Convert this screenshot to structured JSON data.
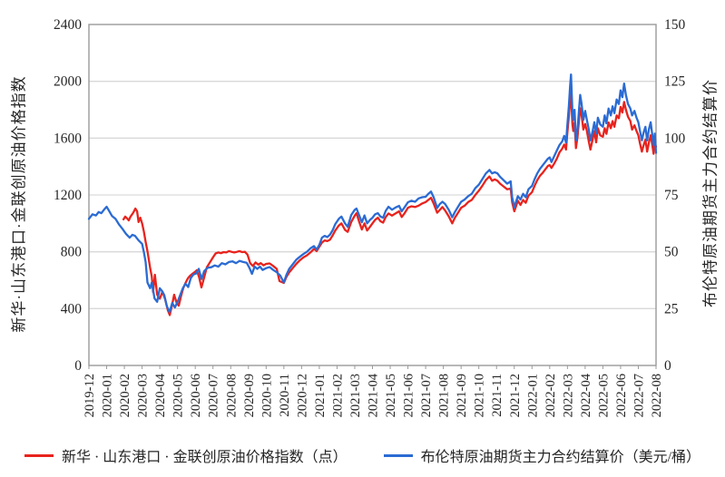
{
  "chart_data": {
    "type": "line",
    "title": "",
    "grid": "horizontal",
    "legend_position": "bottom",
    "x_axis": {
      "unit": "month_index_from_2019-12",
      "labels": [
        "2019-12",
        "2020-01",
        "2020-02",
        "2020-03",
        "2020-04",
        "2020-05",
        "2020-06",
        "2020-07",
        "2020-08",
        "2020-09",
        "2020-10",
        "2020-11",
        "2020-12",
        "2021-01",
        "2021-02",
        "2021-03",
        "2021-04",
        "2021-05",
        "2021-06",
        "2021-07",
        "2021-08",
        "2021-09",
        "2021-10",
        "2021-11",
        "2021-12",
        "2022-01",
        "2022-02",
        "2022-03",
        "2022-04",
        "2022-05",
        "2022-06",
        "2022-07",
        "2022-08"
      ]
    },
    "left_axis": {
      "title": "新华·山东港口·金联创原油价格指数",
      "min": 0,
      "max": 2400,
      "ticks": [
        0,
        400,
        800,
        1200,
        1600,
        2000,
        2400
      ]
    },
    "right_axis": {
      "title": "布伦特原油期货主力合约结算价",
      "min": 0,
      "max": 150,
      "ticks": [
        0,
        25,
        50,
        75,
        100,
        125,
        150
      ]
    },
    "series": [
      {
        "name": "新华 · 山东港口 · 金联创原油价格指数（点）",
        "axis": "left",
        "color": "#e8231d",
        "x": [
          1.95,
          2.05,
          2.15,
          2.25,
          2.35,
          2.5,
          2.62,
          2.72,
          2.8,
          2.9,
          3.0,
          3.1,
          3.2,
          3.3,
          3.45,
          3.55,
          3.62,
          3.72,
          3.85,
          4.0,
          4.15,
          4.3,
          4.45,
          4.56,
          4.7,
          4.81,
          4.95,
          5.07,
          5.2,
          5.32,
          5.45,
          5.58,
          5.7,
          5.84,
          6.0,
          6.09,
          6.22,
          6.35,
          6.5,
          6.65,
          6.8,
          7.0,
          7.15,
          7.3,
          7.45,
          7.6,
          7.75,
          7.9,
          8.05,
          8.2,
          8.35,
          8.5,
          8.65,
          8.8,
          8.95,
          9.1,
          9.25,
          9.4,
          9.55,
          9.7,
          9.85,
          10.0,
          10.2,
          10.4,
          10.6,
          10.75,
          11.0,
          11.15,
          11.3,
          11.5,
          11.7,
          11.9,
          12.1,
          12.3,
          12.5,
          12.7,
          12.85,
          13.0,
          13.15,
          13.3,
          13.45,
          13.6,
          13.75,
          13.9,
          14.1,
          14.25,
          14.45,
          14.6,
          14.8,
          15.0,
          15.1,
          15.25,
          15.4,
          15.55,
          15.7,
          15.85,
          16.0,
          16.15,
          16.3,
          16.45,
          16.6,
          16.75,
          16.9,
          17.1,
          17.3,
          17.5,
          17.65,
          17.8,
          18.0,
          18.2,
          18.4,
          18.6,
          18.8,
          19.0,
          19.15,
          19.3,
          19.45,
          19.65,
          19.8,
          19.95,
          20.1,
          20.3,
          20.5,
          20.65,
          20.8,
          21.0,
          21.2,
          21.4,
          21.6,
          21.8,
          22.0,
          22.2,
          22.4,
          22.6,
          22.75,
          22.9,
          23.05,
          23.2,
          23.4,
          23.6,
          23.8,
          23.88,
          24.0,
          24.1,
          24.2,
          24.35,
          24.5,
          24.65,
          24.8,
          25.0,
          25.15,
          25.3,
          25.45,
          25.6,
          25.75,
          25.9,
          26.0,
          26.1,
          26.25,
          26.4,
          26.55,
          26.7,
          26.82,
          26.92,
          27.0,
          27.08,
          27.15,
          27.2,
          27.28,
          27.33,
          27.4,
          27.48,
          27.57,
          27.65,
          27.72,
          27.8,
          27.9,
          28.0,
          28.1,
          28.2,
          28.3,
          28.42,
          28.52,
          28.62,
          28.72,
          28.85,
          29.0,
          29.1,
          29.2,
          29.32,
          29.45,
          29.55,
          29.65,
          29.78,
          29.9,
          30.0,
          30.1,
          30.2,
          30.3,
          30.42,
          30.55,
          30.65,
          30.78,
          30.9,
          31.0,
          31.1,
          31.2,
          31.3,
          31.4,
          31.5,
          31.6,
          31.7,
          31.78,
          31.86,
          31.93,
          32.0
        ],
        "values": [
          1028,
          1048,
          1035,
          1021,
          1048,
          1075,
          1104,
          1085,
          1010,
          1040,
          1000,
          944,
          870,
          804,
          689,
          625,
          517,
          638,
          498,
          470,
          520,
          466,
          390,
          355,
          430,
          498,
          440,
          421,
          490,
          543,
          580,
          613,
          630,
          645,
          660,
          670,
          620,
          549,
          620,
          690,
          720,
          760,
          788,
          795,
          790,
          798,
          795,
          805,
          800,
          795,
          800,
          805,
          798,
          800,
          780,
          720,
          700,
          725,
          710,
          720,
          705,
          715,
          718,
          700,
          680,
          594,
          581,
          625,
          655,
          685,
          715,
          740,
          760,
          775,
          795,
          820,
          805,
          835,
          865,
          880,
          875,
          885,
          915,
          950,
          985,
          1000,
          955,
          940,
          1010,
          1055,
          1072,
          1010,
          957,
          1000,
          950,
          975,
          1000,
          1025,
          1040,
          1015,
          1005,
          1045,
          1070,
          1055,
          1070,
          1085,
          1045,
          1070,
          1110,
          1120,
          1115,
          1125,
          1140,
          1150,
          1165,
          1180,
          1140,
          1075,
          1095,
          1115,
          1090,
          1050,
          1000,
          1040,
          1070,
          1110,
          1125,
          1150,
          1165,
          1200,
          1230,
          1265,
          1305,
          1330,
          1300,
          1310,
          1300,
          1280,
          1260,
          1240,
          1245,
          1150,
          1085,
          1120,
          1160,
          1130,
          1165,
          1145,
          1195,
          1220,
          1265,
          1305,
          1335,
          1355,
          1380,
          1405,
          1410,
          1390,
          1420,
          1455,
          1500,
          1525,
          1555,
          1520,
          1640,
          1750,
          1860,
          1920,
          1700,
          1650,
          1710,
          1530,
          1610,
          1720,
          1810,
          1760,
          1660,
          1700,
          1650,
          1580,
          1520,
          1590,
          1650,
          1570,
          1670,
          1620,
          1610,
          1670,
          1630,
          1710,
          1670,
          1720,
          1680,
          1760,
          1740,
          1820,
          1780,
          1855,
          1800,
          1750,
          1720,
          1660,
          1690,
          1650,
          1620,
          1560,
          1505,
          1550,
          1590,
          1505,
          1570,
          1620,
          1560,
          1490,
          1560,
          1540
        ]
      },
      {
        "name": "布伦特原油期货主力合约结算价（美元/桶）",
        "axis": "right",
        "color": "#2b6bd3",
        "x": [
          0,
          0.2,
          0.4,
          0.55,
          0.7,
          0.85,
          1.0,
          1.1,
          1.3,
          1.5,
          1.7,
          1.9,
          2.1,
          2.3,
          2.45,
          2.6,
          2.8,
          3.0,
          3.1,
          3.2,
          3.3,
          3.45,
          3.55,
          3.7,
          3.85,
          4.0,
          4.1,
          4.25,
          4.4,
          4.55,
          4.7,
          4.85,
          5.0,
          5.15,
          5.3,
          5.45,
          5.6,
          5.75,
          5.9,
          6.05,
          6.2,
          6.35,
          6.5,
          6.7,
          6.9,
          7.1,
          7.3,
          7.5,
          7.7,
          7.9,
          8.1,
          8.3,
          8.5,
          8.7,
          8.9,
          9.05,
          9.2,
          9.35,
          9.5,
          9.65,
          9.8,
          10.0,
          10.2,
          10.4,
          10.6,
          10.8,
          11.0,
          11.15,
          11.3,
          11.5,
          11.7,
          11.9,
          12.1,
          12.3,
          12.5,
          12.7,
          12.85,
          13.0,
          13.15,
          13.3,
          13.45,
          13.6,
          13.75,
          13.9,
          14.1,
          14.25,
          14.45,
          14.6,
          14.8,
          15.0,
          15.1,
          15.25,
          15.4,
          15.55,
          15.7,
          15.85,
          16.0,
          16.15,
          16.3,
          16.45,
          16.6,
          16.75,
          16.9,
          17.1,
          17.3,
          17.5,
          17.65,
          17.8,
          18.0,
          18.2,
          18.4,
          18.6,
          18.8,
          19.0,
          19.15,
          19.3,
          19.45,
          19.65,
          19.8,
          19.95,
          20.1,
          20.3,
          20.5,
          20.65,
          20.8,
          21.0,
          21.2,
          21.4,
          21.6,
          21.8,
          22.0,
          22.2,
          22.4,
          22.6,
          22.75,
          22.9,
          23.05,
          23.2,
          23.4,
          23.6,
          23.8,
          23.88,
          24.0,
          24.1,
          24.2,
          24.35,
          24.5,
          24.65,
          24.8,
          25.0,
          25.15,
          25.3,
          25.45,
          25.6,
          25.75,
          25.9,
          26.0,
          26.1,
          26.25,
          26.4,
          26.55,
          26.7,
          26.82,
          26.92,
          27.0,
          27.08,
          27.15,
          27.2,
          27.28,
          27.33,
          27.4,
          27.48,
          27.57,
          27.65,
          27.72,
          27.8,
          27.9,
          28.0,
          28.1,
          28.2,
          28.3,
          28.42,
          28.52,
          28.62,
          28.72,
          28.85,
          29.0,
          29.1,
          29.2,
          29.32,
          29.45,
          29.55,
          29.65,
          29.78,
          29.9,
          30.0,
          30.1,
          30.2,
          30.3,
          30.42,
          30.55,
          30.65,
          30.78,
          30.9,
          31.0,
          31.1,
          31.2,
          31.3,
          31.4,
          31.5,
          31.6,
          31.7,
          31.78,
          31.86,
          31.93,
          32.0
        ],
        "values": [
          64.5,
          66.5,
          66,
          67.5,
          67,
          68.5,
          69.8,
          68.5,
          65.8,
          64.5,
          62,
          60,
          57.8,
          56.2,
          57.5,
          57,
          55,
          53.5,
          50,
          45.5,
          36.5,
          34,
          36.5,
          29.5,
          28,
          34,
          33,
          31,
          26,
          23.5,
          27.5,
          25.5,
          28,
          31,
          34,
          36,
          34.5,
          38.5,
          40,
          40.5,
          42.5,
          38,
          41.5,
          43,
          43.2,
          44,
          43.5,
          45,
          44.5,
          45.5,
          45.8,
          45,
          46,
          45.5,
          45.2,
          43,
          40.3,
          43.5,
          42.5,
          43.5,
          42,
          42.8,
          43.3,
          42,
          41,
          39.5,
          36.5,
          40,
          42.5,
          44.5,
          46.5,
          47.8,
          49,
          50,
          51.5,
          52.5,
          51,
          53,
          56.2,
          57,
          56.5,
          57.5,
          59.5,
          62.2,
          64.5,
          65.5,
          62.5,
          61,
          66.2,
          68.5,
          69,
          66,
          63,
          66,
          62.5,
          64,
          65,
          66.5,
          67,
          65.5,
          65,
          68,
          69.8,
          68.5,
          69.5,
          70.2,
          67.8,
          69.5,
          71.8,
          72.5,
          72,
          73.5,
          74,
          74.2,
          75.5,
          76.5,
          74,
          69.3,
          71,
          72,
          71,
          68.5,
          65.2,
          67.5,
          69.5,
          72,
          73,
          74.5,
          75.5,
          78,
          79.5,
          82,
          84.5,
          86,
          84.5,
          85,
          84.5,
          83,
          81.5,
          80,
          81,
          74,
          69.5,
          72,
          74.5,
          73,
          75.5,
          74,
          77.5,
          79,
          82,
          84.5,
          86.5,
          88,
          89.5,
          91,
          91.5,
          89.5,
          92,
          94.5,
          97,
          98.5,
          101,
          98,
          106,
          114,
          123,
          128,
          112,
          108,
          112.5,
          99,
          104,
          112,
          119,
          115,
          108,
          112,
          108,
          104,
          99,
          103,
          107,
          102,
          109,
          106,
          105,
          110,
          106.5,
          113,
          110,
          114,
          111,
          117,
          115,
          121,
          118,
          124,
          119,
          115,
          113,
          110,
          112,
          109,
          107,
          103,
          99,
          102.5,
          105,
          99,
          104,
          107,
          102,
          97,
          102,
          93.5
        ]
      }
    ]
  }
}
